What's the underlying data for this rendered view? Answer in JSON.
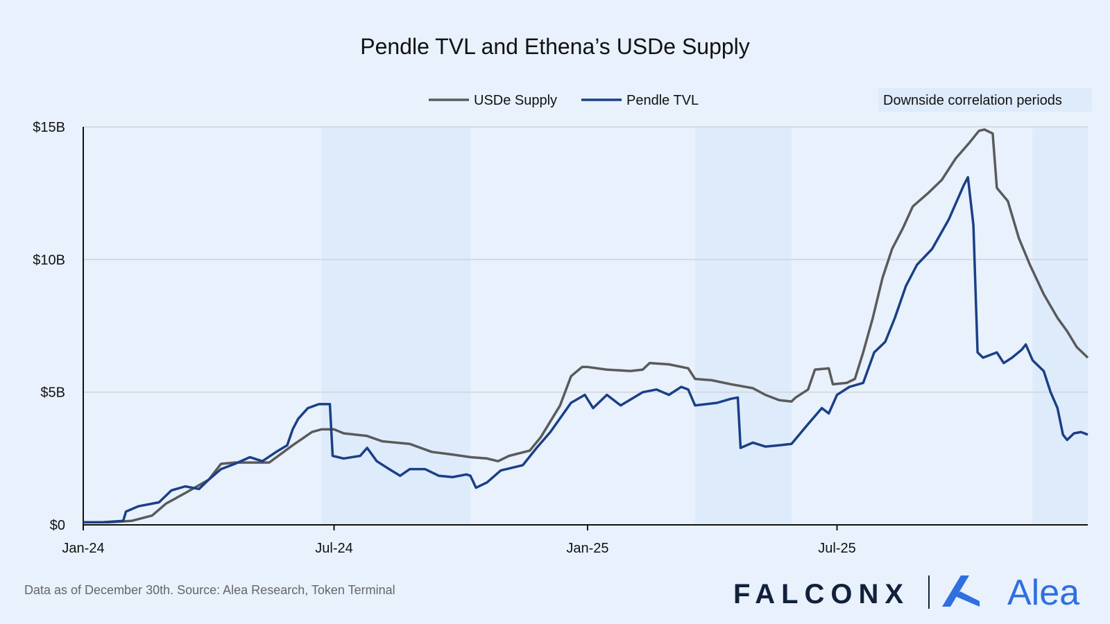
{
  "chart_data": {
    "type": "line",
    "title": "Pendle TVL and Ethena’s USDe Supply",
    "xlabel": "",
    "ylabel": "",
    "x_range": [
      "2024-01-01",
      "2025-12-30"
    ],
    "x_ticks": [
      {
        "date": "2024-01-01",
        "label": "Jan-24"
      },
      {
        "date": "2024-07-01",
        "label": "Jul-24"
      },
      {
        "date": "2025-01-01",
        "label": "Jan-25"
      },
      {
        "date": "2025-07-01",
        "label": "Jul-25"
      }
    ],
    "ylim": [
      0,
      15
    ],
    "y_unit": "$B",
    "y_ticks": [
      {
        "value": 0,
        "label": "$0"
      },
      {
        "value": 5,
        "label": "$5B"
      },
      {
        "value": 10,
        "label": "$10B"
      },
      {
        "value": 15,
        "label": "$15B"
      }
    ],
    "grid": "horizontal",
    "legend_position": "top",
    "shaded_regions": {
      "label": "Downside correlation periods",
      "color": "#deebfb",
      "ranges": [
        [
          "2024-06-22",
          "2024-10-08"
        ],
        [
          "2025-03-20",
          "2025-05-29"
        ],
        [
          "2025-11-20",
          "2025-12-30"
        ]
      ]
    },
    "series": [
      {
        "name": "USDe Supply",
        "color": "#5a5a5a",
        "points": [
          [
            "2024-01-01",
            0.1
          ],
          [
            "2024-01-20",
            0.1
          ],
          [
            "2024-02-05",
            0.15
          ],
          [
            "2024-02-20",
            0.35
          ],
          [
            "2024-03-01",
            0.8
          ],
          [
            "2024-03-15",
            1.2
          ],
          [
            "2024-04-01",
            1.7
          ],
          [
            "2024-04-10",
            2.3
          ],
          [
            "2024-04-20",
            2.35
          ],
          [
            "2024-05-01",
            2.35
          ],
          [
            "2024-05-15",
            2.35
          ],
          [
            "2024-06-01",
            3.0
          ],
          [
            "2024-06-15",
            3.5
          ],
          [
            "2024-06-22",
            3.6
          ],
          [
            "2024-07-01",
            3.6
          ],
          [
            "2024-07-08",
            3.45
          ],
          [
            "2024-07-25",
            3.35
          ],
          [
            "2024-08-05",
            3.15
          ],
          [
            "2024-08-25",
            3.05
          ],
          [
            "2024-09-10",
            2.75
          ],
          [
            "2024-09-25",
            2.65
          ],
          [
            "2024-10-08",
            2.55
          ],
          [
            "2024-10-20",
            2.5
          ],
          [
            "2024-10-28",
            2.4
          ],
          [
            "2024-11-05",
            2.6
          ],
          [
            "2024-11-20",
            2.8
          ],
          [
            "2024-11-28",
            3.3
          ],
          [
            "2024-12-05",
            3.9
          ],
          [
            "2024-12-12",
            4.5
          ],
          [
            "2024-12-20",
            5.6
          ],
          [
            "2024-12-28",
            5.95
          ],
          [
            "2025-01-01",
            5.95
          ],
          [
            "2025-01-15",
            5.85
          ],
          [
            "2025-02-01",
            5.8
          ],
          [
            "2025-02-10",
            5.85
          ],
          [
            "2025-02-15",
            6.1
          ],
          [
            "2025-03-01",
            6.05
          ],
          [
            "2025-03-15",
            5.9
          ],
          [
            "2025-03-20",
            5.5
          ],
          [
            "2025-04-01",
            5.45
          ],
          [
            "2025-04-15",
            5.3
          ],
          [
            "2025-05-01",
            5.15
          ],
          [
            "2025-05-10",
            4.9
          ],
          [
            "2025-05-20",
            4.7
          ],
          [
            "2025-05-29",
            4.65
          ],
          [
            "2025-06-01",
            4.8
          ],
          [
            "2025-06-10",
            5.1
          ],
          [
            "2025-06-15",
            5.85
          ],
          [
            "2025-06-25",
            5.9
          ],
          [
            "2025-06-28",
            5.3
          ],
          [
            "2025-07-08",
            5.35
          ],
          [
            "2025-07-14",
            5.5
          ],
          [
            "2025-07-20",
            6.5
          ],
          [
            "2025-07-27",
            7.8
          ],
          [
            "2025-08-03",
            9.3
          ],
          [
            "2025-08-10",
            10.4
          ],
          [
            "2025-08-18",
            11.2
          ],
          [
            "2025-08-25",
            12.0
          ],
          [
            "2025-09-05",
            12.5
          ],
          [
            "2025-09-15",
            13.0
          ],
          [
            "2025-09-25",
            13.8
          ],
          [
            "2025-10-05",
            14.4
          ],
          [
            "2025-10-12",
            14.85
          ],
          [
            "2025-10-16",
            14.9
          ],
          [
            "2025-10-22",
            14.75
          ],
          [
            "2025-10-25",
            12.7
          ],
          [
            "2025-11-02",
            12.2
          ],
          [
            "2025-11-10",
            10.8
          ],
          [
            "2025-11-18",
            9.8
          ],
          [
            "2025-11-28",
            8.7
          ],
          [
            "2025-12-08",
            7.8
          ],
          [
            "2025-12-15",
            7.3
          ],
          [
            "2025-12-22",
            6.7
          ],
          [
            "2025-12-30",
            6.3
          ]
        ]
      },
      {
        "name": "Pendle TVL",
        "color": "#1a3f86",
        "points": [
          [
            "2024-01-01",
            0.1
          ],
          [
            "2024-01-15",
            0.1
          ],
          [
            "2024-01-30",
            0.15
          ],
          [
            "2024-02-01",
            0.5
          ],
          [
            "2024-02-10",
            0.7
          ],
          [
            "2024-02-25",
            0.85
          ],
          [
            "2024-03-05",
            1.3
          ],
          [
            "2024-03-15",
            1.45
          ],
          [
            "2024-03-25",
            1.35
          ],
          [
            "2024-04-01",
            1.7
          ],
          [
            "2024-04-10",
            2.1
          ],
          [
            "2024-04-20",
            2.3
          ],
          [
            "2024-05-01",
            2.55
          ],
          [
            "2024-05-10",
            2.4
          ],
          [
            "2024-05-20",
            2.75
          ],
          [
            "2024-05-28",
            3.0
          ],
          [
            "2024-06-01",
            3.6
          ],
          [
            "2024-06-05",
            4.0
          ],
          [
            "2024-06-12",
            4.4
          ],
          [
            "2024-06-20",
            4.55
          ],
          [
            "2024-06-28",
            4.55
          ],
          [
            "2024-06-30",
            2.6
          ],
          [
            "2024-07-08",
            2.5
          ],
          [
            "2024-07-20",
            2.6
          ],
          [
            "2024-07-25",
            2.9
          ],
          [
            "2024-08-01",
            2.4
          ],
          [
            "2024-08-10",
            2.1
          ],
          [
            "2024-08-18",
            1.85
          ],
          [
            "2024-08-25",
            2.1
          ],
          [
            "2024-09-05",
            2.1
          ],
          [
            "2024-09-15",
            1.85
          ],
          [
            "2024-09-25",
            1.8
          ],
          [
            "2024-10-05",
            1.9
          ],
          [
            "2024-10-08",
            1.85
          ],
          [
            "2024-10-12",
            1.4
          ],
          [
            "2024-10-20",
            1.6
          ],
          [
            "2024-10-30",
            2.05
          ],
          [
            "2024-11-15",
            2.25
          ],
          [
            "2024-11-25",
            2.9
          ],
          [
            "2024-12-05",
            3.5
          ],
          [
            "2024-12-20",
            4.6
          ],
          [
            "2024-12-30",
            4.9
          ],
          [
            "2025-01-05",
            4.4
          ],
          [
            "2025-01-15",
            4.9
          ],
          [
            "2025-01-25",
            4.5
          ],
          [
            "2025-02-10",
            5.0
          ],
          [
            "2025-02-20",
            5.1
          ],
          [
            "2025-03-01",
            4.9
          ],
          [
            "2025-03-10",
            5.2
          ],
          [
            "2025-03-15",
            5.1
          ],
          [
            "2025-03-20",
            4.5
          ],
          [
            "2025-04-05",
            4.6
          ],
          [
            "2025-04-15",
            4.75
          ],
          [
            "2025-04-20",
            4.8
          ],
          [
            "2025-04-22",
            2.9
          ],
          [
            "2025-05-01",
            3.1
          ],
          [
            "2025-05-10",
            2.95
          ],
          [
            "2025-05-20",
            3.0
          ],
          [
            "2025-05-29",
            3.05
          ],
          [
            "2025-06-10",
            3.8
          ],
          [
            "2025-06-20",
            4.4
          ],
          [
            "2025-06-25",
            4.2
          ],
          [
            "2025-07-01",
            4.9
          ],
          [
            "2025-07-10",
            5.2
          ],
          [
            "2025-07-20",
            5.35
          ],
          [
            "2025-07-28",
            6.5
          ],
          [
            "2025-08-05",
            6.9
          ],
          [
            "2025-08-12",
            7.8
          ],
          [
            "2025-08-20",
            9.0
          ],
          [
            "2025-08-28",
            9.8
          ],
          [
            "2025-09-08",
            10.4
          ],
          [
            "2025-09-20",
            11.5
          ],
          [
            "2025-10-01",
            12.8
          ],
          [
            "2025-10-04",
            13.1
          ],
          [
            "2025-10-08",
            11.3
          ],
          [
            "2025-10-11",
            6.5
          ],
          [
            "2025-10-15",
            6.3
          ],
          [
            "2025-10-25",
            6.5
          ],
          [
            "2025-10-30",
            6.1
          ],
          [
            "2025-11-05",
            6.3
          ],
          [
            "2025-11-12",
            6.6
          ],
          [
            "2025-11-15",
            6.8
          ],
          [
            "2025-11-20",
            6.2
          ],
          [
            "2025-11-28",
            5.8
          ],
          [
            "2025-12-03",
            5.0
          ],
          [
            "2025-12-08",
            4.4
          ],
          [
            "2025-12-12",
            3.4
          ],
          [
            "2025-12-15",
            3.2
          ],
          [
            "2025-12-20",
            3.45
          ],
          [
            "2025-12-25",
            3.5
          ],
          [
            "2025-12-30",
            3.4
          ]
        ]
      }
    ]
  },
  "footer": {
    "note": "Data as of December 30th. Source: Alea Research, Token Terminal"
  },
  "brands": {
    "falconx": "FALCONX",
    "alea": "Alea"
  }
}
